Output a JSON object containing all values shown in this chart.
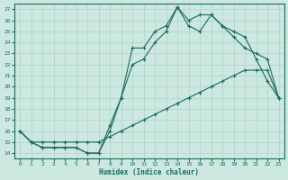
{
  "xlabel": "Humidex (Indice chaleur)",
  "xlim": [
    -0.5,
    23.5
  ],
  "ylim": [
    13.5,
    27.5
  ],
  "yticks": [
    14,
    15,
    16,
    17,
    18,
    19,
    20,
    21,
    22,
    23,
    24,
    25,
    26,
    27
  ],
  "xticks": [
    0,
    1,
    2,
    3,
    4,
    5,
    6,
    7,
    8,
    9,
    10,
    11,
    12,
    13,
    14,
    15,
    16,
    17,
    18,
    19,
    20,
    21,
    22,
    23
  ],
  "bg_color": "#cce8e0",
  "line_color": "#1a6b5a",
  "grid_color": "#b0d8cc",
  "line1_x": [
    0,
    1,
    2,
    3,
    4,
    5,
    6,
    7,
    8,
    9,
    10,
    11,
    12,
    13,
    14,
    15,
    16,
    17,
    18,
    19,
    20,
    21,
    22,
    23
  ],
  "line1_y": [
    16.0,
    15.0,
    14.5,
    14.5,
    14.5,
    14.5,
    14.0,
    14.0,
    16.5,
    19.0,
    23.5,
    23.5,
    25.0,
    25.5,
    27.2,
    25.5,
    25.0,
    26.5,
    25.5,
    25.0,
    24.5,
    22.5,
    20.5,
    19.0
  ],
  "line2_x": [
    0,
    1,
    2,
    3,
    4,
    5,
    6,
    7,
    8,
    9,
    10,
    11,
    12,
    13,
    14,
    15,
    16,
    17,
    18,
    19,
    20,
    21,
    22,
    23
  ],
  "line2_y": [
    16.0,
    15.0,
    14.5,
    14.5,
    14.5,
    14.5,
    14.0,
    14.0,
    16.0,
    19.0,
    22.0,
    22.5,
    24.0,
    25.0,
    27.2,
    26.0,
    26.5,
    26.5,
    25.5,
    24.5,
    23.5,
    23.0,
    22.5,
    19.0
  ],
  "line3_x": [
    0,
    1,
    2,
    3,
    4,
    5,
    6,
    7,
    8,
    9,
    10,
    11,
    12,
    13,
    14,
    15,
    16,
    17,
    18,
    19,
    20,
    21,
    22,
    23
  ],
  "line3_y": [
    16.0,
    15.0,
    15.0,
    15.0,
    15.0,
    15.0,
    15.0,
    15.0,
    15.5,
    16.0,
    16.5,
    17.0,
    17.5,
    18.0,
    18.5,
    19.0,
    19.5,
    20.0,
    20.5,
    21.0,
    21.5,
    21.5,
    21.5,
    19.0
  ]
}
